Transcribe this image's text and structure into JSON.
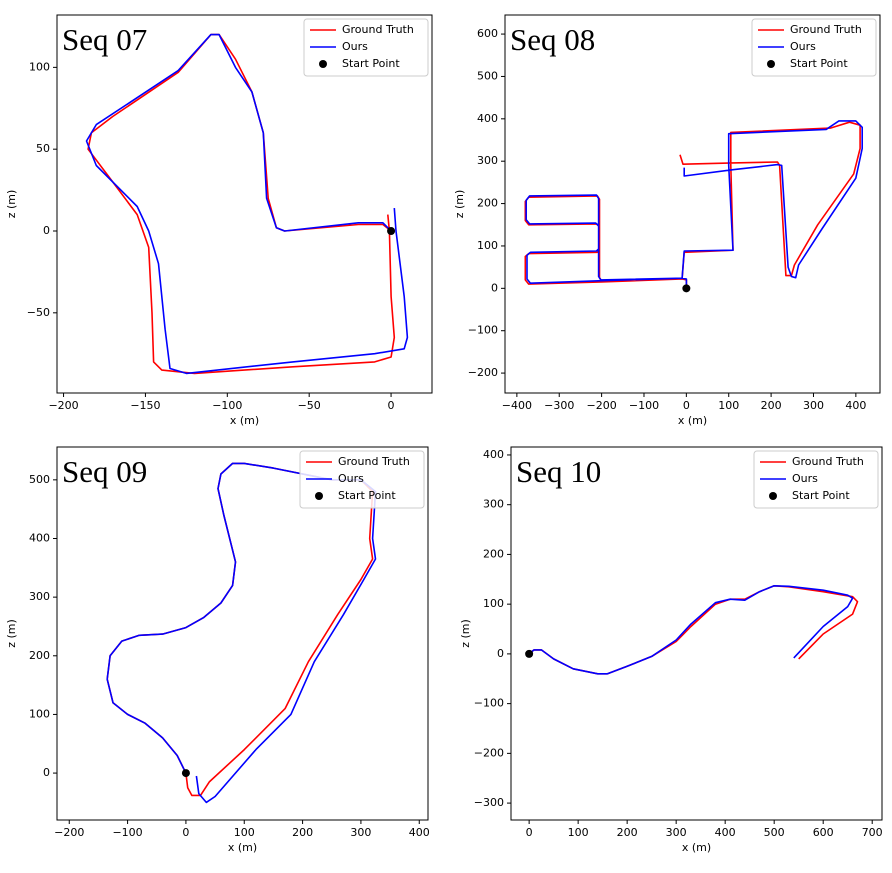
{
  "chart_data": [
    {
      "type": "line",
      "title": "Seq 07",
      "xlabel": "x (m)",
      "ylabel": "z (m)",
      "legend": "upper right",
      "xlim": [
        -204,
        25
      ],
      "ylim": [
        -99,
        132
      ],
      "xticks": [
        {
          "value": -200,
          "label": "−200"
        },
        {
          "value": -150,
          "label": "−150"
        },
        {
          "value": -100,
          "label": "−100"
        },
        {
          "value": -50,
          "label": "−50"
        },
        0
      ],
      "yticks": [
        {
          "value": -50,
          "label": "−50"
        },
        0,
        50,
        100
      ],
      "series": [
        {
          "name": "Ground Truth",
          "color": "#ff0000",
          "style": "line",
          "x": [
            -2,
            -1,
            0,
            2,
            0,
            -10,
            -60,
            -120,
            -140,
            -145,
            -146,
            -148,
            -155,
            -170,
            -185,
            -183,
            -170,
            -130,
            -110,
            -105,
            -95,
            -85,
            -78,
            -75,
            -70,
            -65,
            -20,
            -5,
            0
          ],
          "values": [
            10,
            0,
            -40,
            -65,
            -77,
            -80,
            -83,
            -87,
            -85,
            -80,
            -50,
            -10,
            10,
            30,
            50,
            60,
            70,
            97,
            120,
            120,
            105,
            85,
            60,
            20,
            2,
            0,
            4,
            4,
            0
          ]
        },
        {
          "name": "Ours",
          "color": "#0000ff",
          "style": "line",
          "x": [
            2,
            3,
            8,
            10,
            8,
            -10,
            -60,
            -125,
            -135,
            -138,
            -142,
            -148,
            -155,
            -180,
            -186,
            -180,
            -130,
            -110,
            -105,
            -95,
            -85,
            -78,
            -76,
            -70,
            -65,
            -20,
            -5,
            0
          ],
          "values": [
            14,
            0,
            -40,
            -65,
            -72,
            -75,
            -80,
            -87,
            -84,
            -60,
            -20,
            0,
            15,
            40,
            55,
            65,
            98,
            120,
            120,
            100,
            85,
            60,
            20,
            2,
            0,
            5,
            5,
            0
          ]
        },
        {
          "name": "Start Point",
          "color": "#000000",
          "style": "marker",
          "x": [
            0
          ],
          "values": [
            0
          ]
        }
      ]
    },
    {
      "type": "line",
      "title": "Seq 08",
      "xlabel": "x (m)",
      "ylabel": "z (m)",
      "legend": "upper right",
      "xlim": [
        -428,
        457
      ],
      "ylim": [
        -247,
        645
      ],
      "xticks": [
        {
          "value": -400,
          "label": "−400"
        },
        {
          "value": -300,
          "label": "−300"
        },
        {
          "value": -200,
          "label": "−200"
        },
        {
          "value": -100,
          "label": "−100"
        },
        0,
        100,
        200,
        300,
        400
      ],
      "yticks": [
        {
          "value": -200,
          "label": "−200"
        },
        {
          "value": -100,
          "label": "−100"
        },
        0,
        100,
        200,
        300,
        400,
        500,
        600
      ],
      "series": [
        {
          "name": "Ground Truth",
          "color": "#ff0000",
          "style": "line",
          "x": [
            0,
            0,
            -10,
            -200,
            -372,
            -380,
            -380,
            -372,
            -210,
            -205,
            -205,
            -212,
            -372,
            -380,
            -380,
            -372,
            -210,
            -205,
            -205,
            -200,
            -10,
            -5,
            110,
            105,
            105,
            340,
            385,
            410,
            410,
            395,
            310,
            255,
            248,
            235,
            220,
            215,
            110,
            -8,
            -15
          ],
          "values": [
            0,
            20,
            22,
            15,
            10,
            20,
            75,
            82,
            85,
            90,
            145,
            152,
            150,
            160,
            205,
            215,
            218,
            210,
            25,
            18,
            22,
            85,
            90,
            290,
            368,
            378,
            392,
            385,
            330,
            270,
            150,
            55,
            30,
            30,
            290,
            298,
            296,
            293,
            315
          ]
        },
        {
          "name": "Ours",
          "color": "#0000ff",
          "style": "line",
          "x": [
            0,
            0,
            -10,
            -200,
            -368,
            -376,
            -376,
            -368,
            -212,
            -207,
            -207,
            -214,
            -370,
            -378,
            -378,
            -370,
            -212,
            -207,
            -207,
            -202,
            -10,
            -5,
            110,
            100,
            100,
            330,
            360,
            400,
            415,
            415,
            400,
            320,
            265,
            258,
            248,
            240,
            225,
            215,
            110,
            -5,
            -5
          ],
          "values": [
            0,
            22,
            24,
            18,
            12,
            22,
            78,
            85,
            88,
            93,
            148,
            154,
            152,
            162,
            208,
            218,
            220,
            212,
            28,
            20,
            24,
            88,
            90,
            290,
            365,
            375,
            395,
            395,
            380,
            330,
            260,
            140,
            55,
            25,
            28,
            50,
            290,
            292,
            280,
            265,
            285
          ]
        },
        {
          "name": "Start Point",
          "color": "#000000",
          "style": "marker",
          "x": [
            0
          ],
          "values": [
            0
          ]
        }
      ]
    },
    {
      "type": "line",
      "title": "Seq 09",
      "xlabel": "x (m)",
      "ylabel": "z (m)",
      "legend": "upper right",
      "xlim": [
        -221,
        415
      ],
      "ylim": [
        -80,
        556
      ],
      "xticks": [
        {
          "value": -200,
          "label": "−200"
        },
        {
          "value": -100,
          "label": "−100"
        },
        0,
        100,
        200,
        300,
        400
      ],
      "yticks": [
        0,
        100,
        200,
        300,
        400,
        500
      ],
      "series": [
        {
          "name": "Ground Truth",
          "color": "#ff0000",
          "style": "line",
          "x": [
            0,
            3,
            10,
            25,
            40,
            100,
            170,
            210,
            260,
            300,
            320,
            315,
            320,
            300,
            250,
            150,
            100,
            80,
            60,
            55,
            65,
            80,
            85,
            80,
            60,
            30,
            0,
            -40,
            -80,
            -110,
            -130,
            -135,
            -125,
            -100,
            -70,
            -40,
            -15,
            0
          ],
          "values": [
            0,
            -25,
            -38,
            -38,
            -15,
            40,
            110,
            190,
            270,
            330,
            365,
            400,
            480,
            500,
            500,
            520,
            528,
            528,
            510,
            485,
            440,
            380,
            360,
            320,
            290,
            265,
            248,
            237,
            235,
            225,
            200,
            160,
            120,
            100,
            85,
            60,
            30,
            0
          ]
        },
        {
          "name": "Ours",
          "color": "#0000ff",
          "style": "line",
          "x": [
            18,
            22,
            35,
            50,
            120,
            180,
            220,
            270,
            305,
            325,
            320,
            325,
            300,
            250,
            150,
            100,
            80,
            60,
            55,
            65,
            80,
            85,
            80,
            60,
            30,
            0,
            -40,
            -80,
            -110,
            -130,
            -135,
            -125,
            -100,
            -70,
            -40,
            -15,
            0
          ],
          "values": [
            -5,
            -35,
            -50,
            -40,
            40,
            100,
            190,
            270,
            330,
            365,
            400,
            480,
            500,
            500,
            520,
            528,
            528,
            510,
            485,
            440,
            380,
            360,
            320,
            290,
            265,
            248,
            237,
            235,
            225,
            200,
            160,
            120,
            100,
            85,
            60,
            30,
            0
          ]
        },
        {
          "name": "Start Point",
          "color": "#000000",
          "style": "marker",
          "x": [
            0
          ],
          "values": [
            0
          ]
        }
      ]
    },
    {
      "type": "line",
      "title": "Seq 10",
      "xlabel": "x (m)",
      "ylabel": "z (m)",
      "legend": "upper right",
      "xlim": [
        -37,
        720
      ],
      "ylim": [
        -334,
        416
      ],
      "xticks": [
        0,
        100,
        200,
        300,
        400,
        500,
        600,
        700
      ],
      "yticks": [
        {
          "value": -300,
          "label": "−300"
        },
        {
          "value": -200,
          "label": "−200"
        },
        {
          "value": -100,
          "label": "−100"
        },
        0,
        100,
        200,
        300,
        400
      ],
      "series": [
        {
          "name": "Ground Truth",
          "color": "#ff0000",
          "style": "line",
          "x": [
            0,
            10,
            25,
            50,
            90,
            140,
            160,
            200,
            250,
            300,
            330,
            380,
            410,
            440,
            470,
            500,
            530,
            600,
            660,
            670,
            660,
            600,
            550
          ],
          "values": [
            0,
            8,
            8,
            -10,
            -30,
            -40,
            -40,
            -25,
            -5,
            25,
            55,
            100,
            110,
            110,
            125,
            137,
            135,
            125,
            115,
            105,
            80,
            40,
            -10
          ]
        },
        {
          "name": "Ours",
          "color": "#0000ff",
          "style": "line",
          "x": [
            0,
            10,
            25,
            50,
            90,
            140,
            160,
            200,
            250,
            300,
            330,
            380,
            410,
            440,
            470,
            500,
            530,
            600,
            650,
            660,
            650,
            600,
            540
          ],
          "values": [
            0,
            8,
            8,
            -10,
            -30,
            -40,
            -40,
            -25,
            -5,
            28,
            60,
            103,
            110,
            108,
            125,
            137,
            136,
            128,
            118,
            112,
            95,
            55,
            -8
          ]
        },
        {
          "name": "Start Point",
          "color": "#000000",
          "style": "marker",
          "x": [
            0
          ],
          "values": [
            0
          ]
        }
      ]
    }
  ]
}
